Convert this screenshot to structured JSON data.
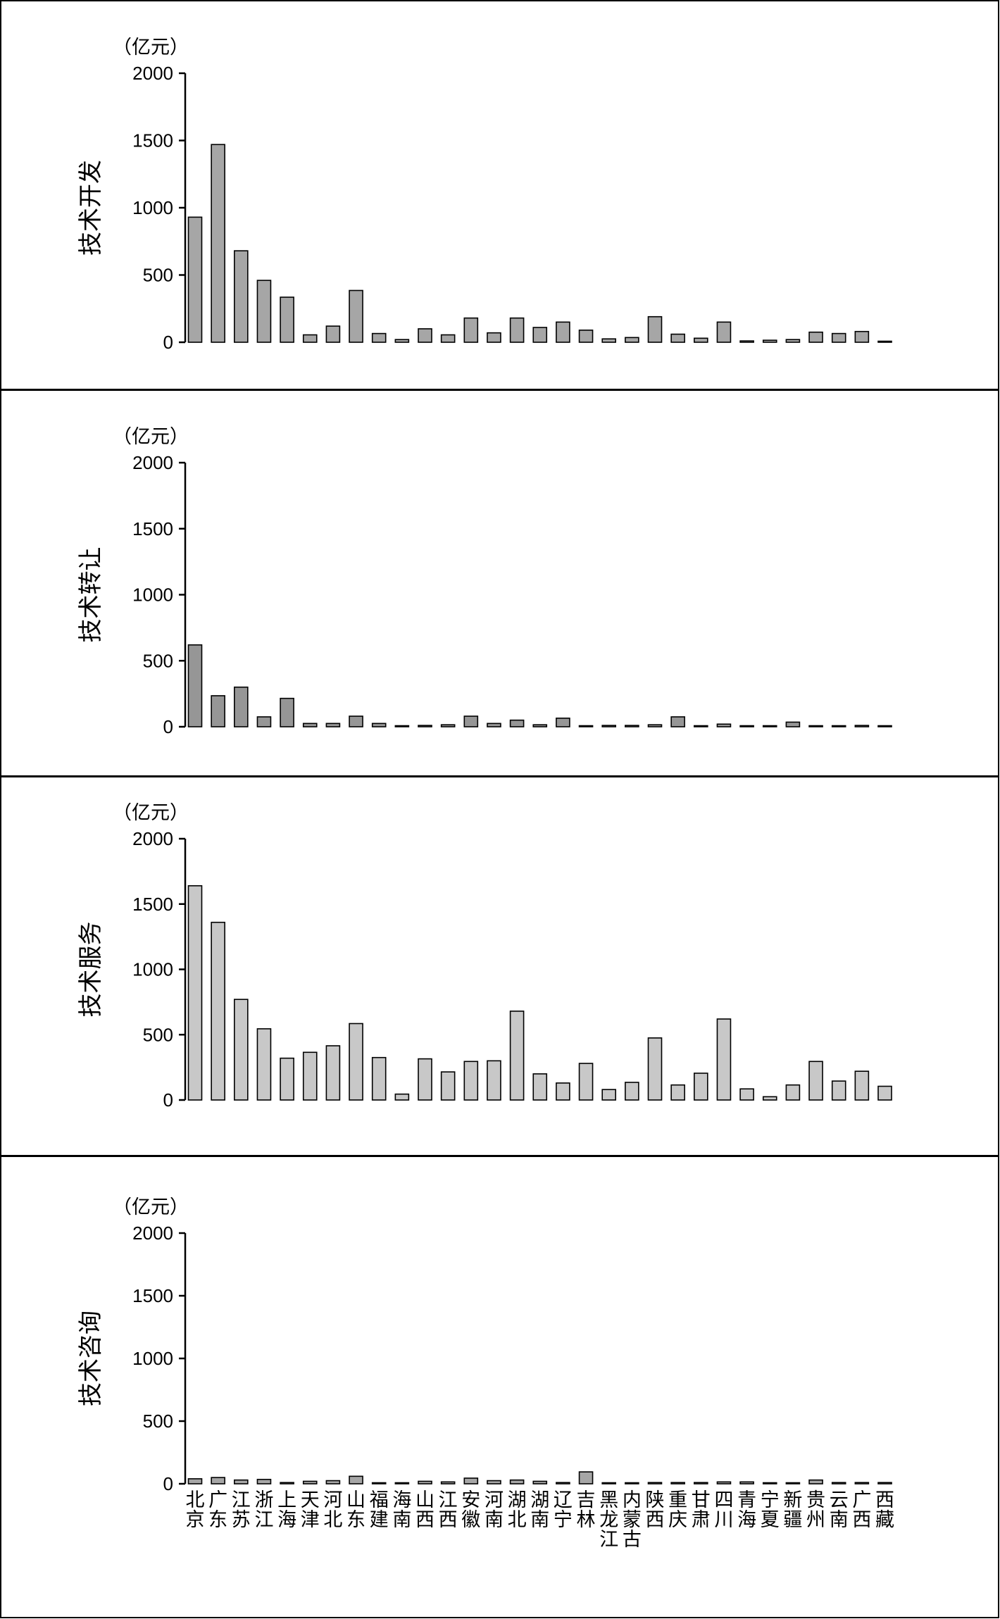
{
  "chart_data": {
    "type": "bar",
    "unit": "（亿元）",
    "ylim": [
      0,
      2000
    ],
    "yticks": [
      0,
      500,
      1000,
      1500,
      2000
    ],
    "grid": false,
    "categories": [
      "北京",
      "广东",
      "江苏",
      "浙江",
      "上海",
      "天津",
      "河北",
      "山东",
      "福建",
      "海南",
      "山西",
      "江西",
      "安徽",
      "河南",
      "湖北",
      "湖南",
      "辽宁",
      "吉林",
      "黑龙江",
      "内蒙古",
      "陕西",
      "重庆",
      "甘肃",
      "四川",
      "青海",
      "宁夏",
      "新疆",
      "贵州",
      "云南",
      "广西",
      "西藏"
    ],
    "panels": [
      {
        "ylabel": "技术开发",
        "color": "#a6a6a6",
        "values": [
          930,
          1470,
          680,
          460,
          335,
          55,
          120,
          385,
          65,
          20,
          100,
          55,
          180,
          70,
          180,
          110,
          150,
          90,
          25,
          35,
          190,
          60,
          30,
          150,
          10,
          15,
          20,
          75,
          65,
          80,
          5
        ]
      },
      {
        "ylabel": "技术转让",
        "color": "#969696",
        "values": [
          620,
          235,
          300,
          75,
          215,
          25,
          25,
          80,
          25,
          5,
          10,
          15,
          80,
          25,
          50,
          15,
          65,
          5,
          10,
          10,
          15,
          75,
          5,
          20,
          5,
          5,
          35,
          5,
          5,
          10,
          5
        ]
      },
      {
        "ylabel": "技术服务",
        "color": "#c8c8c8",
        "values": [
          1640,
          1360,
          770,
          545,
          320,
          365,
          415,
          585,
          325,
          45,
          315,
          215,
          295,
          300,
          680,
          200,
          130,
          280,
          80,
          135,
          475,
          115,
          205,
          620,
          85,
          25,
          115,
          295,
          145,
          220,
          105
        ]
      },
      {
        "ylabel": "技术咨询",
        "color": "#a6a6a6",
        "values": [
          40,
          50,
          30,
          35,
          10,
          20,
          25,
          60,
          5,
          5,
          20,
          15,
          45,
          25,
          30,
          20,
          10,
          95,
          5,
          5,
          10,
          10,
          10,
          15,
          15,
          5,
          5,
          30,
          10,
          10,
          10
        ]
      }
    ]
  }
}
